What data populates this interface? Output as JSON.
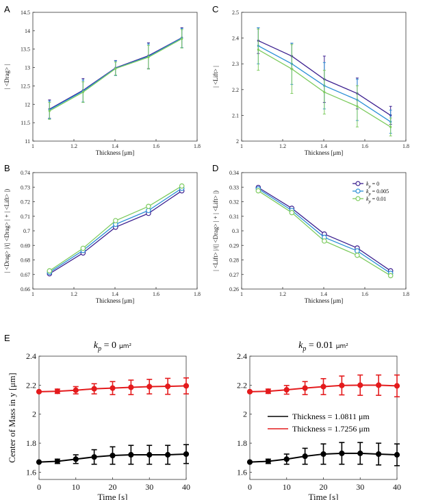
{
  "figure_labels": [
    "A",
    "B",
    "C",
    "D",
    "E"
  ],
  "chart_data": [
    {
      "id": "A",
      "type": "line",
      "xlabel": "Thickness [μm]",
      "ylabel": "| <Drag> |",
      "xlim": [
        1,
        1.8
      ],
      "ylim": [
        11,
        14.5
      ],
      "xticks": [
        "1",
        "1.2",
        "1.4",
        "1.6",
        "1.8"
      ],
      "yticks": [
        "11",
        "11.5",
        "12",
        "12.5",
        "13",
        "13.5",
        "14",
        "14.5"
      ],
      "x": [
        1.0811,
        1.2445,
        1.4028,
        1.563,
        1.7256
      ],
      "series": [
        {
          "name": "k_p = 0",
          "color": "#3b1f8f",
          "values": [
            11.87,
            12.38,
            12.99,
            13.32,
            13.81
          ],
          "err": [
            0.25,
            0.32,
            0.2,
            0.35,
            0.27
          ]
        },
        {
          "name": "k_p = 0.005",
          "color": "#2a8fd6",
          "values": [
            11.85,
            12.36,
            12.98,
            13.3,
            13.8
          ],
          "err": [
            0.24,
            0.3,
            0.2,
            0.34,
            0.26
          ]
        },
        {
          "name": "k_p = 0.01",
          "color": "#7dcb5e",
          "values": [
            11.82,
            12.33,
            12.97,
            13.28,
            13.78
          ],
          "err": [
            0.23,
            0.28,
            0.18,
            0.32,
            0.25
          ]
        }
      ]
    },
    {
      "id": "C",
      "type": "line",
      "xlabel": "Thickness [μm]",
      "ylabel": "| <Lift> |",
      "xlim": [
        1,
        1.8
      ],
      "ylim": [
        2,
        2.5
      ],
      "xticks": [
        "1",
        "1.2",
        "1.4",
        "1.6",
        "1.8"
      ],
      "yticks": [
        "2",
        "2.1",
        "2.2",
        "2.3",
        "2.4",
        "2.5"
      ],
      "x": [
        1.0811,
        1.2445,
        1.4028,
        1.563,
        1.7256
      ],
      "series": [
        {
          "name": "k_p = 0",
          "color": "#3b1f8f",
          "values": [
            2.39,
            2.33,
            2.24,
            2.185,
            2.1
          ],
          "err": [
            0.05,
            0.05,
            0.09,
            0.06,
            0.035
          ]
        },
        {
          "name": "k_p = 0.005",
          "color": "#2a8fd6",
          "values": [
            2.37,
            2.3,
            2.215,
            2.16,
            2.075
          ],
          "err": [
            0.07,
            0.08,
            0.09,
            0.08,
            0.045
          ]
        },
        {
          "name": "k_p = 0.01",
          "color": "#7dcb5e",
          "values": [
            2.355,
            2.28,
            2.19,
            2.135,
            2.055
          ],
          "err": [
            0.08,
            0.095,
            0.085,
            0.08,
            0.035
          ]
        }
      ]
    },
    {
      "id": "B",
      "type": "line",
      "xlabel": "Thickness [μm]",
      "ylabel": "| <Drag> |/(| <Drag> | + | <Lift> |)",
      "xlim": [
        1,
        1.8
      ],
      "ylim": [
        0.66,
        0.74
      ],
      "xticks": [
        "1",
        "1.2",
        "1.4",
        "1.6",
        "1.8"
      ],
      "yticks": [
        "0.66",
        "0.67",
        "0.68",
        "0.69",
        "0.7",
        "0.71",
        "0.72",
        "0.73",
        "0.74"
      ],
      "x": [
        1.0811,
        1.2445,
        1.4028,
        1.563,
        1.7256
      ],
      "series": [
        {
          "name": "k_p = 0",
          "color": "#3b1f8f",
          "values": [
            0.6705,
            0.6848,
            0.7025,
            0.712,
            0.7275
          ]
        },
        {
          "name": "k_p = 0.005",
          "color": "#2a8fd6",
          "values": [
            0.6715,
            0.6865,
            0.7045,
            0.714,
            0.7292
          ]
        },
        {
          "name": "k_p = 0.01",
          "color": "#7dcb5e",
          "values": [
            0.6725,
            0.688,
            0.707,
            0.7168,
            0.7308
          ]
        }
      ]
    },
    {
      "id": "D",
      "type": "line",
      "xlabel": "Thickness [μm]",
      "ylabel": "| <Lift> |/(| <Drag> | + | <Lift> |)",
      "xlim": [
        1,
        1.8
      ],
      "ylim": [
        0.26,
        0.34
      ],
      "xticks": [
        "1",
        "1.2",
        "1.4",
        "1.6",
        "1.8"
      ],
      "yticks": [
        "0.26",
        "0.27",
        "0.28",
        "0.29",
        "0.3",
        "0.31",
        "0.32",
        "0.33",
        "0.34"
      ],
      "x": [
        1.0811,
        1.2445,
        1.4028,
        1.563,
        1.7256
      ],
      "legend": [
        {
          "label": "k_p = 0",
          "color": "#3b1f8f"
        },
        {
          "label": "k_p = 0.005",
          "color": "#2a8fd6"
        },
        {
          "label": "k_p = 0.01",
          "color": "#7dcb5e"
        }
      ],
      "legend_placement": "top-right",
      "series": [
        {
          "name": "k_p = 0",
          "color": "#3b1f8f",
          "values": [
            0.3298,
            0.3155,
            0.2978,
            0.2882,
            0.2725
          ]
        },
        {
          "name": "k_p = 0.005",
          "color": "#2a8fd6",
          "values": [
            0.3288,
            0.314,
            0.2955,
            0.2862,
            0.2708
          ]
        },
        {
          "name": "k_p = 0.01",
          "color": "#7dcb5e",
          "values": [
            0.3275,
            0.3125,
            0.293,
            0.2832,
            0.2692
          ]
        }
      ]
    },
    {
      "id": "E1",
      "type": "line",
      "title": "k_p = 0 μm²",
      "xlabel": "Time [s]",
      "ylabel": "Center of Mass in y [μm]",
      "xlim": [
        0,
        40
      ],
      "ylim": [
        1.55,
        2.4
      ],
      "xticks": [
        "0",
        "10",
        "20",
        "30",
        "40"
      ],
      "yticks": [
        "1.6",
        "1.8",
        "2",
        "2.2",
        "2.4"
      ],
      "x": [
        0,
        5,
        10,
        15,
        20,
        25,
        30,
        35,
        40
      ],
      "series": [
        {
          "name": "Thickness = 1.0811 μm",
          "color": "#000000",
          "values": [
            1.67,
            1.675,
            1.69,
            1.705,
            1.715,
            1.72,
            1.72,
            1.72,
            1.725
          ],
          "err": [
            0,
            0.015,
            0.03,
            0.05,
            0.06,
            0.065,
            0.065,
            0.065,
            0.065
          ]
        },
        {
          "name": "Thickness = 1.7256 μm",
          "color": "#e41a1c",
          "values": [
            2.155,
            2.158,
            2.165,
            2.175,
            2.18,
            2.185,
            2.19,
            2.192,
            2.195
          ],
          "err": [
            0,
            0.015,
            0.025,
            0.035,
            0.045,
            0.05,
            0.05,
            0.055,
            0.055
          ]
        }
      ]
    },
    {
      "id": "E2",
      "type": "line",
      "title": "k_p = 0.01 μm²",
      "xlabel": "Time [s]",
      "xlim": [
        0,
        40
      ],
      "ylim": [
        1.55,
        2.4
      ],
      "xticks": [
        "0",
        "10",
        "20",
        "30",
        "40"
      ],
      "yticks": [
        "1.6",
        "1.8",
        "2",
        "2.2",
        "2.4"
      ],
      "x": [
        0,
        5,
        10,
        15,
        20,
        25,
        30,
        35,
        40
      ],
      "legend": [
        {
          "label": "Thickness = 1.0811 μm",
          "color": "#000000"
        },
        {
          "label": "Thickness = 1.7256 μm",
          "color": "#e41a1c"
        }
      ],
      "legend_placement": "middle-right",
      "series": [
        {
          "name": "Thickness = 1.0811 μm",
          "color": "#000000",
          "values": [
            1.67,
            1.675,
            1.69,
            1.71,
            1.725,
            1.73,
            1.73,
            1.725,
            1.72
          ],
          "err": [
            0,
            0.015,
            0.035,
            0.055,
            0.07,
            0.075,
            0.075,
            0.075,
            0.075
          ]
        },
        {
          "name": "Thickness = 1.7256 μm",
          "color": "#e41a1c",
          "values": [
            2.155,
            2.158,
            2.168,
            2.18,
            2.19,
            2.198,
            2.2,
            2.2,
            2.195
          ],
          "err": [
            0,
            0.015,
            0.03,
            0.045,
            0.055,
            0.065,
            0.07,
            0.07,
            0.075
          ]
        }
      ]
    }
  ]
}
